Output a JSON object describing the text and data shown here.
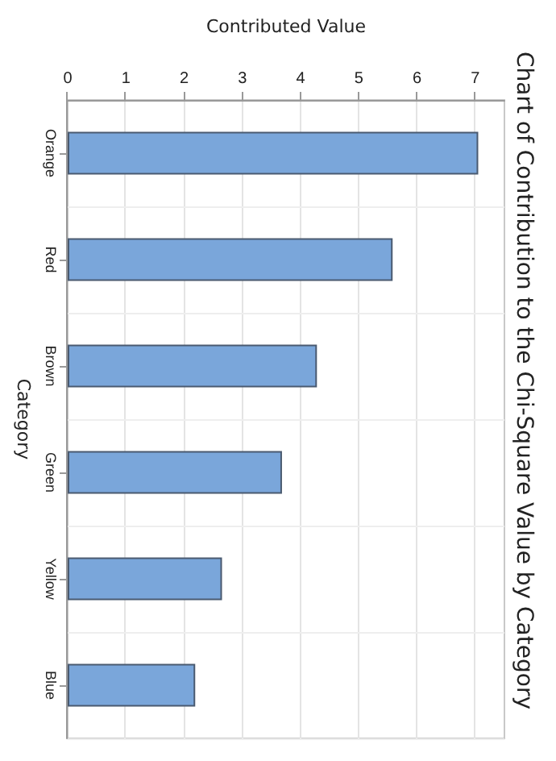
{
  "chart_data": {
    "type": "bar",
    "orientation": "horizontal",
    "title": "Chart of Contribution to the Chi-Square Value by Category",
    "xlabel": "Contributed Value",
    "ylabel": "Category",
    "categories": [
      "Orange",
      "Red",
      "Brown",
      "Green",
      "Yellow",
      "Blue"
    ],
    "values": [
      7.05,
      5.58,
      4.28,
      3.68,
      2.65,
      2.19
    ],
    "color": "#7aa6da",
    "xlim": [
      0,
      7.5
    ],
    "xticks": [
      0,
      1,
      2,
      3,
      4,
      5,
      6,
      7
    ],
    "grid": true
  }
}
